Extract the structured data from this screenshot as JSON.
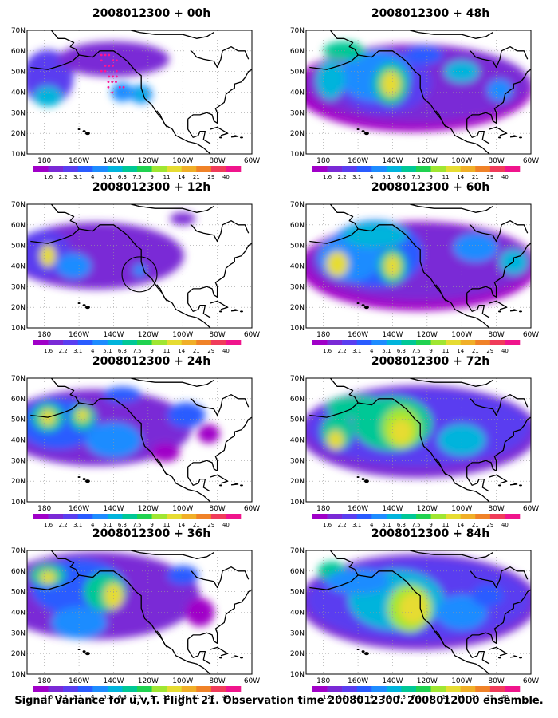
{
  "figure": {
    "caption": "Signal Variance for u,v,T. Flight 21. Observation time 2008012300. 2008012000 ensemble."
  },
  "axes": {
    "lat_labels": [
      "10N",
      "20N",
      "30N",
      "40N",
      "50N",
      "60N",
      "70N"
    ],
    "lon_labels": [
      "180",
      "160W",
      "140W",
      "120W",
      "100W",
      "80W",
      "60W"
    ]
  },
  "colorbar": {
    "labels": [
      "1.6",
      "2.2",
      "3.1",
      "4",
      "5.1",
      "6.3",
      "7.5",
      "9",
      "11",
      "14",
      "21",
      "29",
      "40"
    ],
    "colors": [
      "#a000c8",
      "#7a2ad6",
      "#5a3ef0",
      "#2a5cff",
      "#1e8cff",
      "#00b4dc",
      "#00c896",
      "#20d250",
      "#a0e632",
      "#e6dc32",
      "#f0af28",
      "#f08228",
      "#f03c5a",
      "#f0148c"
    ]
  },
  "panels": [
    {
      "title": "2008012300 + 00h"
    },
    {
      "title": "2008012300 + 48h"
    },
    {
      "title": "2008012300 + 12h"
    },
    {
      "title": "2008012300 + 60h"
    },
    {
      "title": "2008012300 + 24h"
    },
    {
      "title": "2008012300 + 72h"
    },
    {
      "title": "2008012300 + 36h"
    },
    {
      "title": "2008012300 + 84h"
    }
  ]
}
